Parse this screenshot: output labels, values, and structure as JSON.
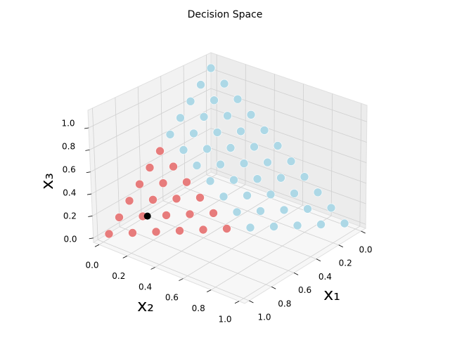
{
  "chart_data": {
    "type": "scatter3d",
    "title": "Decision Space",
    "xlabel": "x₁",
    "ylabel": "x₂",
    "zlabel": "x₃",
    "xlim": [
      0,
      1
    ],
    "ylim": [
      0,
      1
    ],
    "zlim": [
      0,
      1
    ],
    "xticks": [
      {
        "value": 0,
        "label": "0.0"
      },
      0.2,
      0.4,
      0.6,
      0.8,
      {
        "value": 1,
        "label": "1.0"
      }
    ],
    "yticks": [
      {
        "value": 0,
        "label": "0.0"
      },
      0.2,
      0.4,
      0.6,
      0.8,
      {
        "value": 1,
        "label": "1.0"
      }
    ],
    "zticks": [
      {
        "value": 0,
        "label": "0.0"
      },
      0.2,
      0.4,
      0.6,
      0.8,
      {
        "value": 1,
        "label": "1.0"
      }
    ],
    "grid": true,
    "series": [
      {
        "color": "#add8e6",
        "x": [
          0,
          0,
          0,
          0,
          0,
          0,
          0,
          0,
          0,
          0,
          0,
          0.1,
          0.1,
          0.1,
          0.1,
          0.1,
          0.1,
          0.1,
          0.1,
          0.1,
          0.1,
          0.2,
          0.2,
          0.2,
          0.2,
          0.2,
          0.2,
          0.2,
          0.2,
          0.2,
          0.3,
          0.3,
          0.3,
          0.3,
          0.3,
          0.3,
          0.3,
          0.3,
          0.4,
          0.4,
          0.4,
          0.4,
          0.4,
          0.4,
          0.4
        ],
        "y": [
          0,
          0.1,
          0.2,
          0.3,
          0.4,
          0.5,
          0.6,
          0.7,
          0.8,
          0.9,
          1,
          0,
          0.1,
          0.2,
          0.3,
          0.4,
          0.5,
          0.6,
          0.7,
          0.8,
          0.9,
          0,
          0.1,
          0.2,
          0.3,
          0.4,
          0.5,
          0.6,
          0.7,
          0.8,
          0,
          0.1,
          0.2,
          0.3,
          0.4,
          0.5,
          0.6,
          0.7,
          0,
          0.1,
          0.2,
          0.3,
          0.4,
          0.5,
          0.6
        ],
        "z": [
          1,
          0.9,
          0.8,
          0.7,
          0.6,
          0.5,
          0.4,
          0.3,
          0.2,
          0.1,
          0,
          0.9,
          0.8,
          0.7,
          0.6,
          0.5,
          0.4,
          0.3,
          0.2,
          0.1,
          0,
          0.8,
          0.7,
          0.6,
          0.5,
          0.4,
          0.3,
          0.2,
          0.1,
          0,
          0.7,
          0.6,
          0.5,
          0.4,
          0.3,
          0.2,
          0.1,
          0,
          0.6,
          0.5,
          0.4,
          0.3,
          0.2,
          0.1,
          0
        ]
      },
      {
        "color": "#e77c7c",
        "x": [
          0.5,
          0.5,
          0.5,
          0.5,
          0.5,
          0.5,
          0.6,
          0.6,
          0.6,
          0.6,
          0.6,
          0.7,
          0.7,
          0.7,
          0.7,
          0.8,
          0.8,
          0.8,
          0.9,
          0.9,
          1
        ],
        "y": [
          0,
          0.1,
          0.2,
          0.3,
          0.4,
          0.5,
          0,
          0.1,
          0.2,
          0.3,
          0.4,
          0,
          0.1,
          0.2,
          0.3,
          0,
          0.1,
          0.2,
          0,
          0.1,
          0
        ],
        "z": [
          0.5,
          0.4,
          0.3,
          0.2,
          0.1,
          0,
          0.4,
          0.3,
          0.2,
          0.1,
          0,
          0.3,
          0.2,
          0.1,
          0,
          0.2,
          0.1,
          0,
          0.1,
          0,
          0
        ]
      },
      {
        "color": "#000000",
        "x": [
          0.78
        ],
        "y": [
          0.12
        ],
        "z": [
          0.1
        ]
      }
    ]
  }
}
